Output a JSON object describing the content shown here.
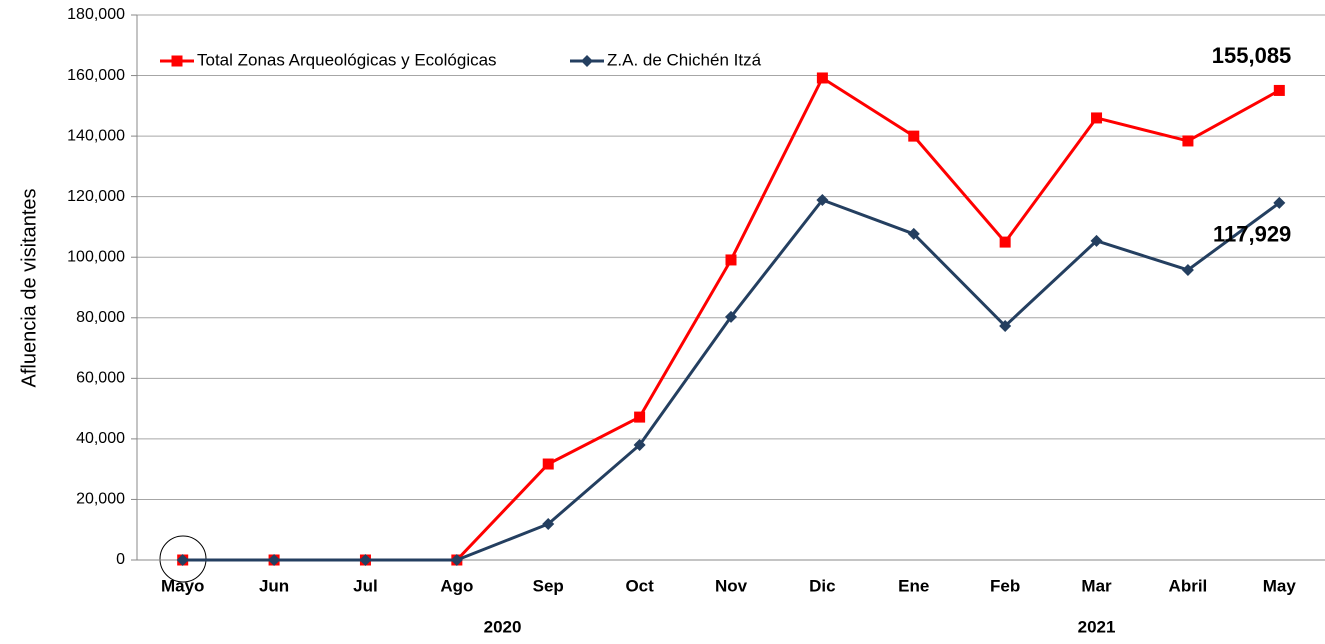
{
  "chart_data": {
    "type": "line",
    "y_label": "Afluencia de visitantes",
    "categories": [
      "Mayo",
      "Jun",
      "Jul",
      "Ago",
      "Sep",
      "Oct",
      "Nov",
      "Dic",
      "Ene",
      "Feb",
      "Mar",
      "Abril",
      "May"
    ],
    "year_groups": [
      {
        "label": "2020",
        "count": 8
      },
      {
        "label": "2021",
        "count": 5
      }
    ],
    "series": [
      {
        "name": "Total Zonas Arqueológicas y Ecológicas",
        "color": "#ff0000",
        "marker": "square",
        "values": [
          0,
          0,
          0,
          0,
          31700,
          47200,
          99100,
          159200,
          140000,
          105000,
          146000,
          138400,
          155085
        ],
        "value_labels": [
          null,
          null,
          null,
          null,
          null,
          null,
          null,
          null,
          null,
          null,
          null,
          null,
          "155,085"
        ]
      },
      {
        "name": "Z.A. de Chichén Itzá",
        "color": "#243f60",
        "marker": "diamond",
        "values": [
          0,
          0,
          0,
          0,
          11900,
          38000,
          80300,
          118900,
          107700,
          77300,
          105400,
          95800,
          117929
        ],
        "value_labels": [
          null,
          null,
          null,
          null,
          null,
          null,
          null,
          null,
          null,
          null,
          null,
          null,
          "117,929"
        ]
      }
    ],
    "ylim": [
      0,
      180000
    ],
    "yticks": [
      {
        "value": 0,
        "label": "0"
      },
      {
        "value": 20000,
        "label": "20,000"
      },
      {
        "value": 40000,
        "label": "40,000"
      },
      {
        "value": 60000,
        "label": "60,000"
      },
      {
        "value": 80000,
        "label": "80,000"
      },
      {
        "value": 100000,
        "label": "100,000"
      },
      {
        "value": 120000,
        "label": "120,000"
      },
      {
        "value": 140000,
        "label": "140,000"
      },
      {
        "value": 160000,
        "label": "160,000"
      },
      {
        "value": 180000,
        "label": "180,000"
      }
    ],
    "grid": true
  }
}
